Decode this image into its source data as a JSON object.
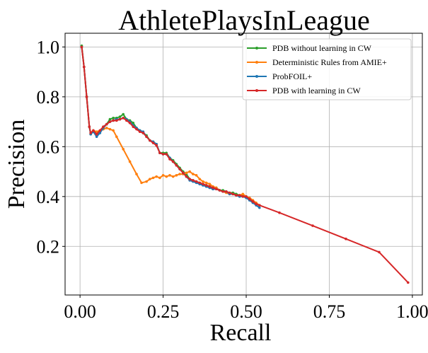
{
  "chart_data": {
    "type": "line",
    "title": "AthletePlaysInLeague",
    "xlabel": "Recall",
    "ylabel": "Precision",
    "xlim": [
      -0.045,
      1.03
    ],
    "ylim": [
      0.005,
      1.055
    ],
    "xticks": [
      "0.00",
      "0.25",
      "0.50",
      "0.75",
      "1.00"
    ],
    "yticks": [
      "0.2",
      "0.4",
      "0.6",
      "0.8",
      "1.0"
    ],
    "grid": true,
    "legend_position": "top-right",
    "series": [
      {
        "name": "PDB without learning in CW",
        "color": "#2ca02c",
        "points": [
          [
            0.005,
            1.005
          ],
          [
            0.012,
            0.92
          ],
          [
            0.02,
            0.8
          ],
          [
            0.028,
            0.68
          ],
          [
            0.032,
            0.65
          ],
          [
            0.04,
            0.66
          ],
          [
            0.05,
            0.645
          ],
          [
            0.06,
            0.66
          ],
          [
            0.07,
            0.68
          ],
          [
            0.08,
            0.69
          ],
          [
            0.09,
            0.71
          ],
          [
            0.1,
            0.715
          ],
          [
            0.11,
            0.715
          ],
          [
            0.12,
            0.72
          ],
          [
            0.13,
            0.73
          ],
          [
            0.14,
            0.71
          ],
          [
            0.15,
            0.705
          ],
          [
            0.16,
            0.695
          ],
          [
            0.17,
            0.675
          ],
          [
            0.18,
            0.665
          ],
          [
            0.19,
            0.655
          ],
          [
            0.2,
            0.645
          ],
          [
            0.21,
            0.625
          ],
          [
            0.22,
            0.62
          ],
          [
            0.23,
            0.61
          ],
          [
            0.24,
            0.575
          ],
          [
            0.25,
            0.575
          ],
          [
            0.26,
            0.575
          ],
          [
            0.27,
            0.555
          ],
          [
            0.28,
            0.545
          ],
          [
            0.29,
            0.53
          ],
          [
            0.3,
            0.515
          ],
          [
            0.31,
            0.5
          ],
          [
            0.32,
            0.49
          ],
          [
            0.33,
            0.47
          ],
          [
            0.34,
            0.465
          ],
          [
            0.35,
            0.46
          ],
          [
            0.36,
            0.455
          ],
          [
            0.37,
            0.45
          ],
          [
            0.38,
            0.445
          ],
          [
            0.39,
            0.44
          ],
          [
            0.4,
            0.43
          ],
          [
            0.41,
            0.435
          ],
          [
            0.42,
            0.425
          ],
          [
            0.43,
            0.425
          ],
          [
            0.44,
            0.42
          ],
          [
            0.45,
            0.415
          ],
          [
            0.46,
            0.415
          ],
          [
            0.47,
            0.41
          ],
          [
            0.48,
            0.405
          ],
          [
            0.49,
            0.405
          ],
          [
            0.5,
            0.4
          ],
          [
            0.51,
            0.39
          ],
          [
            0.52,
            0.38
          ],
          [
            0.53,
            0.37
          ],
          [
            0.54,
            0.365
          ]
        ]
      },
      {
        "name": "Deterministic Rules from AMIE+",
        "color": "#ff7f0e",
        "points": [
          [
            0.005,
            1.0
          ],
          [
            0.012,
            0.92
          ],
          [
            0.02,
            0.8
          ],
          [
            0.028,
            0.68
          ],
          [
            0.032,
            0.655
          ],
          [
            0.04,
            0.665
          ],
          [
            0.05,
            0.66
          ],
          [
            0.06,
            0.665
          ],
          [
            0.07,
            0.67
          ],
          [
            0.08,
            0.675
          ],
          [
            0.09,
            0.67
          ],
          [
            0.1,
            0.665
          ],
          [
            0.11,
            0.64
          ],
          [
            0.13,
            0.59
          ],
          [
            0.15,
            0.54
          ],
          [
            0.17,
            0.49
          ],
          [
            0.185,
            0.455
          ],
          [
            0.2,
            0.46
          ],
          [
            0.21,
            0.47
          ],
          [
            0.22,
            0.475
          ],
          [
            0.23,
            0.48
          ],
          [
            0.24,
            0.475
          ],
          [
            0.25,
            0.485
          ],
          [
            0.26,
            0.48
          ],
          [
            0.27,
            0.485
          ],
          [
            0.28,
            0.48
          ],
          [
            0.29,
            0.485
          ],
          [
            0.3,
            0.49
          ],
          [
            0.31,
            0.49
          ],
          [
            0.32,
            0.495
          ],
          [
            0.33,
            0.5
          ],
          [
            0.34,
            0.49
          ],
          [
            0.35,
            0.485
          ],
          [
            0.36,
            0.47
          ],
          [
            0.37,
            0.46
          ],
          [
            0.38,
            0.455
          ],
          [
            0.39,
            0.45
          ],
          [
            0.4,
            0.44
          ],
          [
            0.41,
            0.435
          ],
          [
            0.42,
            0.425
          ],
          [
            0.43,
            0.42
          ],
          [
            0.44,
            0.415
          ],
          [
            0.45,
            0.41
          ],
          [
            0.46,
            0.41
          ],
          [
            0.47,
            0.405
          ],
          [
            0.48,
            0.405
          ],
          [
            0.49,
            0.41
          ],
          [
            0.5,
            0.4
          ],
          [
            0.51,
            0.395
          ],
          [
            0.52,
            0.385
          ],
          [
            0.53,
            0.375
          ],
          [
            0.54,
            0.365
          ]
        ]
      },
      {
        "name": "ProbFOIL+",
        "color": "#1f77b4",
        "points": [
          [
            0.005,
            1.0
          ],
          [
            0.012,
            0.92
          ],
          [
            0.02,
            0.8
          ],
          [
            0.028,
            0.68
          ],
          [
            0.032,
            0.65
          ],
          [
            0.04,
            0.66
          ],
          [
            0.05,
            0.64
          ],
          [
            0.06,
            0.655
          ],
          [
            0.07,
            0.675
          ],
          [
            0.08,
            0.69
          ],
          [
            0.09,
            0.7
          ],
          [
            0.1,
            0.705
          ],
          [
            0.11,
            0.71
          ],
          [
            0.12,
            0.71
          ],
          [
            0.13,
            0.715
          ],
          [
            0.14,
            0.71
          ],
          [
            0.15,
            0.7
          ],
          [
            0.16,
            0.685
          ],
          [
            0.17,
            0.675
          ],
          [
            0.18,
            0.665
          ],
          [
            0.19,
            0.66
          ],
          [
            0.2,
            0.64
          ],
          [
            0.21,
            0.625
          ],
          [
            0.22,
            0.62
          ],
          [
            0.23,
            0.61
          ],
          [
            0.24,
            0.575
          ],
          [
            0.25,
            0.57
          ],
          [
            0.26,
            0.57
          ],
          [
            0.27,
            0.555
          ],
          [
            0.28,
            0.54
          ],
          [
            0.29,
            0.525
          ],
          [
            0.3,
            0.51
          ],
          [
            0.31,
            0.495
          ],
          [
            0.32,
            0.48
          ],
          [
            0.33,
            0.465
          ],
          [
            0.34,
            0.46
          ],
          [
            0.35,
            0.455
          ],
          [
            0.36,
            0.45
          ],
          [
            0.37,
            0.445
          ],
          [
            0.38,
            0.44
          ],
          [
            0.39,
            0.435
          ],
          [
            0.4,
            0.43
          ],
          [
            0.41,
            0.43
          ],
          [
            0.42,
            0.425
          ],
          [
            0.43,
            0.42
          ],
          [
            0.44,
            0.42
          ],
          [
            0.45,
            0.41
          ],
          [
            0.46,
            0.41
          ],
          [
            0.47,
            0.405
          ],
          [
            0.48,
            0.4
          ],
          [
            0.49,
            0.4
          ],
          [
            0.5,
            0.395
          ],
          [
            0.51,
            0.385
          ],
          [
            0.52,
            0.375
          ],
          [
            0.53,
            0.365
          ],
          [
            0.54,
            0.355
          ]
        ]
      },
      {
        "name": "PDB with learning in CW",
        "color": "#d62728",
        "points": [
          [
            0.005,
            1.0
          ],
          [
            0.012,
            0.92
          ],
          [
            0.02,
            0.8
          ],
          [
            0.028,
            0.68
          ],
          [
            0.032,
            0.655
          ],
          [
            0.04,
            0.665
          ],
          [
            0.05,
            0.65
          ],
          [
            0.06,
            0.665
          ],
          [
            0.07,
            0.68
          ],
          [
            0.08,
            0.69
          ],
          [
            0.09,
            0.7
          ],
          [
            0.1,
            0.705
          ],
          [
            0.11,
            0.705
          ],
          [
            0.12,
            0.71
          ],
          [
            0.13,
            0.715
          ],
          [
            0.14,
            0.705
          ],
          [
            0.15,
            0.695
          ],
          [
            0.16,
            0.68
          ],
          [
            0.17,
            0.67
          ],
          [
            0.18,
            0.66
          ],
          [
            0.19,
            0.655
          ],
          [
            0.2,
            0.64
          ],
          [
            0.21,
            0.625
          ],
          [
            0.22,
            0.615
          ],
          [
            0.23,
            0.605
          ],
          [
            0.24,
            0.575
          ],
          [
            0.25,
            0.57
          ],
          [
            0.26,
            0.57
          ],
          [
            0.27,
            0.55
          ],
          [
            0.28,
            0.54
          ],
          [
            0.29,
            0.525
          ],
          [
            0.3,
            0.51
          ],
          [
            0.31,
            0.495
          ],
          [
            0.32,
            0.48
          ],
          [
            0.33,
            0.47
          ],
          [
            0.34,
            0.465
          ],
          [
            0.35,
            0.46
          ],
          [
            0.36,
            0.455
          ],
          [
            0.37,
            0.45
          ],
          [
            0.38,
            0.445
          ],
          [
            0.39,
            0.44
          ],
          [
            0.4,
            0.435
          ],
          [
            0.41,
            0.43
          ],
          [
            0.42,
            0.425
          ],
          [
            0.43,
            0.42
          ],
          [
            0.44,
            0.42
          ],
          [
            0.45,
            0.415
          ],
          [
            0.46,
            0.41
          ],
          [
            0.47,
            0.405
          ],
          [
            0.48,
            0.405
          ],
          [
            0.49,
            0.4
          ],
          [
            0.5,
            0.4
          ],
          [
            0.51,
            0.39
          ],
          [
            0.52,
            0.38
          ],
          [
            0.53,
            0.37
          ],
          [
            0.54,
            0.365
          ],
          [
            0.6,
            0.335
          ],
          [
            0.7,
            0.283
          ],
          [
            0.8,
            0.23
          ],
          [
            0.9,
            0.177
          ],
          [
            0.987,
            0.055
          ]
        ]
      }
    ]
  }
}
